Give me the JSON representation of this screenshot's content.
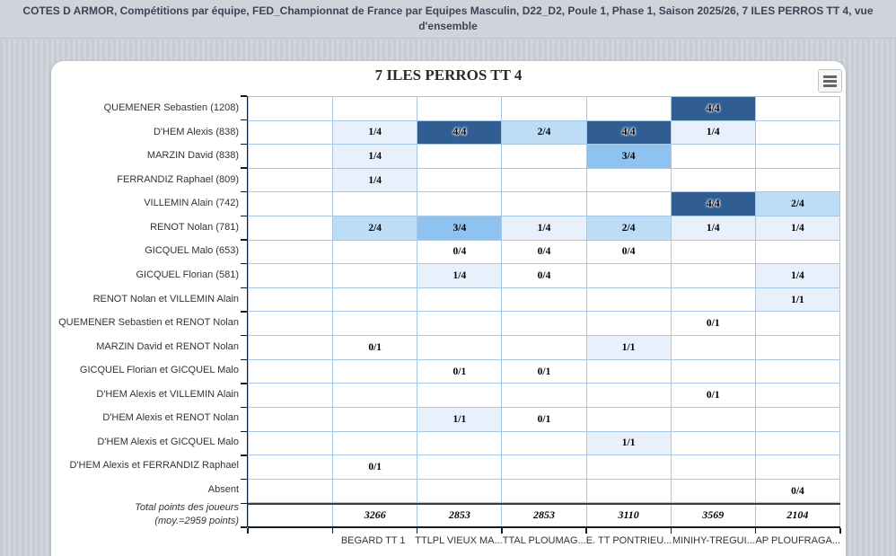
{
  "header": {
    "breadcrumb_line1": "COTES D ARMOR, Compétitions par équipe, FED_Championnat de France par Equipes Masculin, D22_D2, Poule 1, Phase 1, Saison 2025/26, 7 ILES PERROS TT 4, vue",
    "breadcrumb_line2": "d'ensemble"
  },
  "chart": {
    "title": "7 ILES PERROS TT 4",
    "menu_icon": "hamburger-menu-icon"
  },
  "chart_data": {
    "type": "heatmap",
    "title": "7 ILES PERROS TT 4",
    "xlabel": "",
    "ylabel": "",
    "legend": "none",
    "columns": [
      "",
      "BEGARD TT 1",
      "TTLPL VIEUX MA...",
      "TTAL PLOUMAG...",
      "E. TT PONTRIEU...",
      "MINIHY-TREGUI...",
      "AP PLOUFRAGA..."
    ],
    "rows": [
      {
        "label": "QUEMENER Sebastien (1208)",
        "values": [
          "",
          "",
          "",
          "",
          "",
          "4/4",
          ""
        ]
      },
      {
        "label": "D'HEM Alexis (838)",
        "values": [
          "",
          "1/4",
          "4/4",
          "2/4",
          "4/4",
          "1/4",
          ""
        ]
      },
      {
        "label": "MARZIN David (838)",
        "values": [
          "",
          "1/4",
          "",
          "",
          "3/4",
          "",
          ""
        ]
      },
      {
        "label": "FERRANDIZ Raphael (809)",
        "values": [
          "",
          "1/4",
          "",
          "",
          "",
          "",
          ""
        ]
      },
      {
        "label": "VILLEMIN Alain (742)",
        "values": [
          "",
          "",
          "",
          "",
          "",
          "4/4",
          "2/4"
        ]
      },
      {
        "label": "RENOT Nolan (781)",
        "values": [
          "",
          "2/4",
          "3/4",
          "1/4",
          "2/4",
          "1/4",
          "1/4"
        ]
      },
      {
        "label": "GICQUEL Malo (653)",
        "values": [
          "",
          "",
          "0/4",
          "0/4",
          "0/4",
          "",
          ""
        ]
      },
      {
        "label": "GICQUEL Florian (581)",
        "values": [
          "",
          "",
          "1/4",
          "0/4",
          "",
          "",
          "1/4"
        ]
      },
      {
        "label": "RENOT Nolan et VILLEMIN Alain",
        "values": [
          "",
          "",
          "",
          "",
          "",
          "",
          "1/1"
        ]
      },
      {
        "label": "QUEMENER Sebastien et RENOT Nolan",
        "values": [
          "",
          "",
          "",
          "",
          "",
          "0/1",
          ""
        ]
      },
      {
        "label": "MARZIN David et RENOT Nolan",
        "values": [
          "",
          "0/1",
          "",
          "",
          "1/1",
          "",
          ""
        ]
      },
      {
        "label": "GICQUEL Florian et GICQUEL Malo",
        "values": [
          "",
          "",
          "0/1",
          "0/1",
          "",
          "",
          ""
        ]
      },
      {
        "label": "D'HEM Alexis et VILLEMIN Alain",
        "values": [
          "",
          "",
          "",
          "",
          "",
          "0/1",
          ""
        ]
      },
      {
        "label": "D'HEM Alexis et RENOT Nolan",
        "values": [
          "",
          "",
          "1/1",
          "0/1",
          "",
          "",
          ""
        ]
      },
      {
        "label": "D'HEM Alexis et GICQUEL Malo",
        "values": [
          "",
          "",
          "",
          "",
          "1/1",
          "",
          ""
        ]
      },
      {
        "label": "D'HEM Alexis et FERRANDIZ Raphael",
        "values": [
          "",
          "0/1",
          "",
          "",
          "",
          "",
          ""
        ]
      },
      {
        "label": "Absent",
        "values": [
          "",
          "",
          "",
          "",
          "",
          "",
          "0/4"
        ]
      },
      {
        "label": "Total points des joueurs",
        "label_line2": "(moy.=2959 points)",
        "is_total": true,
        "values": [
          "",
          "3266",
          "2853",
          "2853",
          "3110",
          "3569",
          "2104"
        ]
      }
    ],
    "color_scale": {
      "0": "#ffffff",
      "1": "#e7f0fb",
      "2": "#bddcf5",
      "3": "#8ec2ef",
      "4": "#305e93"
    },
    "style": {
      "grid_line": "#a7c7e7",
      "axis_line": "#1a1a1a",
      "label_color": "#333333"
    }
  }
}
